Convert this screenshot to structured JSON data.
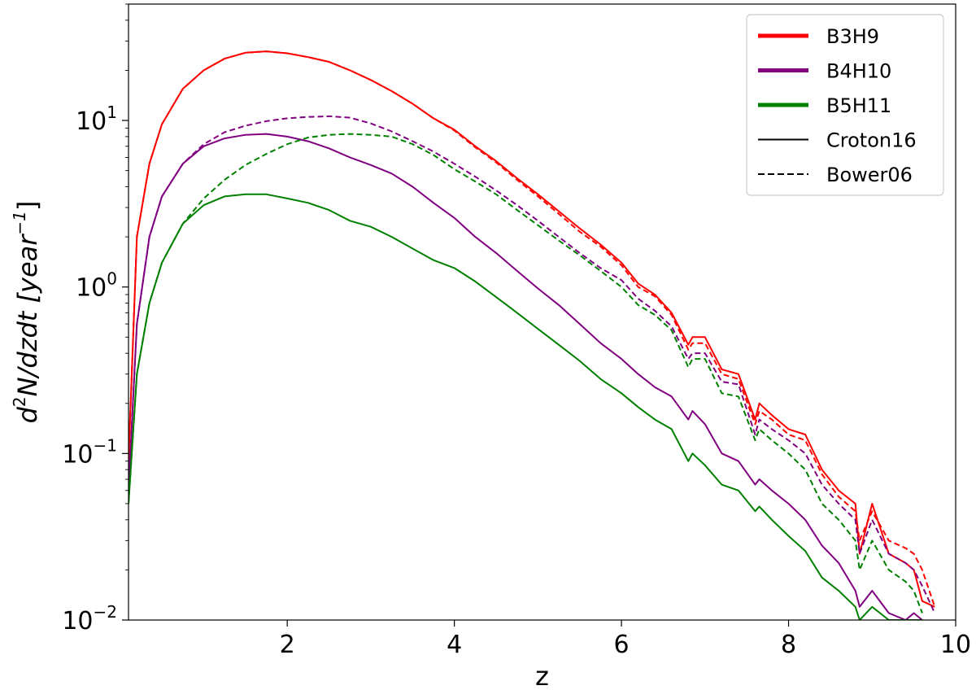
{
  "chart_data": {
    "type": "line",
    "xlabel": "z",
    "ylabel_parts": {
      "d": "d",
      "two": "2",
      "rest": "N/dzdt [year",
      "exp": "−1",
      "close": "]"
    },
    "xlim": [
      0.1,
      10
    ],
    "ylim": [
      0.01,
      50
    ],
    "yscale": "log",
    "xticks": [
      {
        "value": 2,
        "label": "2"
      },
      {
        "value": 4,
        "label": "4"
      },
      {
        "value": 6,
        "label": "6"
      },
      {
        "value": 8,
        "label": "8"
      },
      {
        "value": 10,
        "label": "10"
      }
    ],
    "yticks": [
      {
        "value": 0.01,
        "base": "10",
        "exp": "−2"
      },
      {
        "value": 0.1,
        "base": "10",
        "exp": "−1"
      },
      {
        "value": 1,
        "base": "10",
        "exp": "0"
      },
      {
        "value": 10,
        "base": "10",
        "exp": "1"
      }
    ],
    "legend": {
      "position": "top-right",
      "entries": [
        {
          "label": "B3H9",
          "color": "#ff0000",
          "style": "thick"
        },
        {
          "label": "B4H10",
          "color": "#800080",
          "style": "thick"
        },
        {
          "label": "B5H11",
          "color": "#008000",
          "style": "thick"
        },
        {
          "label": "Croton16",
          "color": "#000000",
          "style": "solid"
        },
        {
          "label": "Bower06",
          "color": "#000000",
          "style": "dashed"
        }
      ]
    },
    "series": [
      {
        "model": "B3H9",
        "variant": "Croton16",
        "color": "#ff0000",
        "dash": false,
        "x": [
          0.1,
          0.2,
          0.35,
          0.5,
          0.75,
          1.0,
          1.25,
          1.5,
          1.75,
          2.0,
          2.25,
          2.5,
          2.75,
          3.0,
          3.25,
          3.5,
          3.75,
          4.0,
          4.25,
          4.5,
          4.75,
          5.0,
          5.25,
          5.5,
          5.75,
          6.0,
          6.2,
          6.4,
          6.6,
          6.8,
          6.85,
          7.0,
          7.2,
          7.4,
          7.6,
          7.65,
          7.8,
          8.0,
          8.2,
          8.4,
          8.6,
          8.8,
          8.85,
          9.0,
          9.2,
          9.4,
          9.5,
          9.6,
          9.75
        ],
        "y": [
          0.09,
          2.0,
          5.5,
          9.5,
          15.5,
          20.0,
          23.5,
          25.5,
          26.0,
          25.3,
          24.0,
          22.5,
          20.0,
          17.5,
          15.0,
          12.6,
          10.3,
          8.8,
          7.0,
          5.7,
          4.5,
          3.6,
          2.85,
          2.25,
          1.8,
          1.4,
          1.05,
          0.9,
          0.7,
          0.45,
          0.5,
          0.5,
          0.32,
          0.3,
          0.16,
          0.2,
          0.17,
          0.14,
          0.13,
          0.08,
          0.06,
          0.05,
          0.025,
          0.05,
          0.025,
          0.022,
          0.02,
          0.013,
          0.012
        ]
      },
      {
        "model": "B3H9",
        "variant": "Bower06",
        "color": "#ff0000",
        "dash": true,
        "x": [
          0.1,
          0.2,
          0.35,
          0.5,
          0.75,
          1.0,
          1.25,
          1.5,
          1.75,
          2.0,
          2.25,
          2.5,
          2.75,
          3.0,
          3.25,
          3.5,
          3.75,
          4.0,
          4.25,
          4.5,
          4.75,
          5.0,
          5.25,
          5.5,
          5.75,
          6.0,
          6.2,
          6.4,
          6.6,
          6.8,
          6.85,
          7.0,
          7.2,
          7.4,
          7.6,
          7.65,
          7.8,
          8.0,
          8.2,
          8.4,
          8.6,
          8.8,
          8.85,
          9.0,
          9.2,
          9.4,
          9.5,
          9.6,
          9.75
        ],
        "y": [
          0.09,
          2.0,
          5.5,
          9.5,
          15.5,
          20.0,
          23.5,
          25.5,
          26.0,
          25.3,
          24.0,
          22.5,
          20.0,
          17.5,
          15.0,
          12.6,
          10.3,
          8.7,
          6.9,
          5.6,
          4.4,
          3.5,
          2.75,
          2.15,
          1.75,
          1.35,
          1.0,
          0.88,
          0.68,
          0.42,
          0.46,
          0.46,
          0.3,
          0.28,
          0.15,
          0.18,
          0.16,
          0.13,
          0.12,
          0.075,
          0.055,
          0.045,
          0.03,
          0.045,
          0.03,
          0.027,
          0.025,
          0.02,
          0.012
        ]
      },
      {
        "model": "B4H10",
        "variant": "Croton16",
        "color": "#800080",
        "dash": false,
        "x": [
          0.1,
          0.2,
          0.35,
          0.5,
          0.75,
          1.0,
          1.25,
          1.5,
          1.75,
          2.0,
          2.25,
          2.5,
          2.75,
          3.0,
          3.25,
          3.5,
          3.75,
          4.0,
          4.25,
          4.5,
          4.75,
          5.0,
          5.25,
          5.5,
          5.75,
          6.0,
          6.2,
          6.4,
          6.6,
          6.8,
          6.85,
          7.0,
          7.2,
          7.4,
          7.6,
          7.65,
          7.8,
          8.0,
          8.2,
          8.4,
          8.6,
          8.8,
          8.85,
          9.0,
          9.2,
          9.4,
          9.5,
          9.6
        ],
        "y": [
          0.06,
          0.6,
          2.0,
          3.5,
          5.5,
          7.0,
          7.8,
          8.2,
          8.3,
          8.0,
          7.5,
          6.8,
          6.0,
          5.4,
          4.8,
          4.0,
          3.2,
          2.6,
          2.0,
          1.6,
          1.25,
          0.98,
          0.78,
          0.6,
          0.46,
          0.37,
          0.3,
          0.25,
          0.22,
          0.16,
          0.18,
          0.15,
          0.1,
          0.09,
          0.065,
          0.07,
          0.06,
          0.05,
          0.04,
          0.028,
          0.022,
          0.015,
          0.012,
          0.015,
          0.011,
          0.01,
          0.011,
          0.01
        ]
      },
      {
        "model": "B4H10",
        "variant": "Bower06",
        "color": "#800080",
        "dash": true,
        "x": [
          0.1,
          0.2,
          0.35,
          0.5,
          0.75,
          1.0,
          1.25,
          1.5,
          1.75,
          2.0,
          2.25,
          2.5,
          2.75,
          3.0,
          3.25,
          3.5,
          3.75,
          4.0,
          4.25,
          4.5,
          4.75,
          5.0,
          5.25,
          5.5,
          5.75,
          6.0,
          6.2,
          6.4,
          6.6,
          6.8,
          6.85,
          7.0,
          7.2,
          7.4,
          7.6,
          7.65,
          7.8,
          8.0,
          8.2,
          8.4,
          8.6,
          8.8,
          8.85,
          9.0,
          9.2,
          9.4,
          9.5,
          9.6,
          9.75
        ],
        "y": [
          0.06,
          0.6,
          2.0,
          3.5,
          5.5,
          7.2,
          8.5,
          9.3,
          9.9,
          10.3,
          10.5,
          10.6,
          10.4,
          9.6,
          8.6,
          7.5,
          6.5,
          5.5,
          4.6,
          3.8,
          3.1,
          2.5,
          2.0,
          1.6,
          1.3,
          1.1,
          0.85,
          0.72,
          0.58,
          0.37,
          0.4,
          0.4,
          0.27,
          0.26,
          0.13,
          0.16,
          0.14,
          0.12,
          0.1,
          0.065,
          0.05,
          0.04,
          0.025,
          0.04,
          0.025,
          0.022,
          0.02,
          0.016,
          0.011
        ]
      },
      {
        "model": "B5H11",
        "variant": "Croton16",
        "color": "#008000",
        "dash": false,
        "x": [
          0.1,
          0.2,
          0.35,
          0.5,
          0.75,
          1.0,
          1.25,
          1.5,
          1.75,
          2.0,
          2.25,
          2.5,
          2.75,
          3.0,
          3.25,
          3.5,
          3.75,
          4.0,
          4.25,
          4.5,
          4.75,
          5.0,
          5.25,
          5.5,
          5.75,
          6.0,
          6.2,
          6.4,
          6.6,
          6.8,
          6.85,
          7.0,
          7.2,
          7.4,
          7.6,
          7.65,
          7.8,
          8.0,
          8.2,
          8.4,
          8.6,
          8.8,
          8.85,
          9.0,
          9.2,
          9.4,
          9.5,
          9.6
        ],
        "y": [
          0.05,
          0.3,
          0.8,
          1.4,
          2.4,
          3.1,
          3.5,
          3.6,
          3.6,
          3.4,
          3.2,
          2.9,
          2.5,
          2.3,
          2.0,
          1.7,
          1.45,
          1.3,
          1.08,
          0.87,
          0.7,
          0.56,
          0.45,
          0.36,
          0.28,
          0.23,
          0.19,
          0.16,
          0.14,
          0.09,
          0.1,
          0.085,
          0.065,
          0.06,
          0.045,
          0.048,
          0.04,
          0.032,
          0.026,
          0.018,
          0.015,
          0.012,
          0.01,
          0.012,
          0.01,
          0.01,
          0.01,
          0.01
        ]
      },
      {
        "model": "B5H11",
        "variant": "Bower06",
        "color": "#008000",
        "dash": true,
        "x": [
          0.1,
          0.2,
          0.35,
          0.5,
          0.75,
          1.0,
          1.25,
          1.5,
          1.75,
          2.0,
          2.25,
          2.5,
          2.75,
          3.0,
          3.25,
          3.5,
          3.75,
          4.0,
          4.25,
          4.5,
          4.75,
          5.0,
          5.25,
          5.5,
          5.75,
          6.0,
          6.2,
          6.4,
          6.6,
          6.8,
          6.85,
          7.0,
          7.2,
          7.4,
          7.6,
          7.65,
          7.8,
          8.0,
          8.2,
          8.4,
          8.6,
          8.8,
          8.85,
          9.0,
          9.2,
          9.4,
          9.5,
          9.6
        ],
        "y": [
          0.05,
          0.3,
          0.8,
          1.4,
          2.4,
          3.4,
          4.4,
          5.4,
          6.3,
          7.2,
          7.9,
          8.2,
          8.3,
          8.2,
          8.0,
          7.2,
          6.2,
          5.1,
          4.3,
          3.6,
          2.9,
          2.35,
          1.9,
          1.55,
          1.25,
          1.0,
          0.78,
          0.68,
          0.55,
          0.33,
          0.37,
          0.37,
          0.23,
          0.22,
          0.12,
          0.14,
          0.12,
          0.1,
          0.08,
          0.05,
          0.04,
          0.03,
          0.02,
          0.03,
          0.02,
          0.017,
          0.015,
          0.011
        ]
      }
    ]
  }
}
